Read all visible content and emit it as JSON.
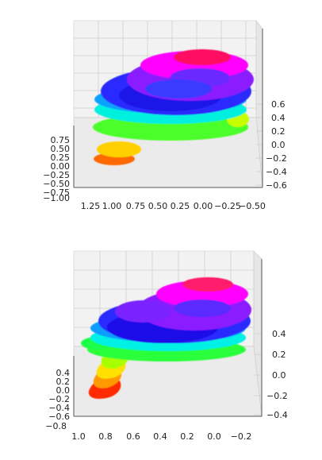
{
  "chart_data": [
    {
      "type": "scatter",
      "title": "",
      "subtitle": "",
      "xlabel": "",
      "ylabel": "",
      "zlabel": "",
      "projection": "3d",
      "grid": true,
      "legend": "none",
      "colormap": "hsv",
      "x_ticks": [
        "1.25",
        "1.00",
        "0.75",
        "0.50",
        "0.25",
        "0.00",
        "−0.25",
        "−0.50"
      ],
      "y_ticks": [
        "0.75",
        "0.50",
        "0.25",
        "0.00",
        "−0.25",
        "−0.50",
        "−0.75",
        "−1.00"
      ],
      "z_ticks": [
        "0.6",
        "0.4",
        "0.2",
        "0.0",
        "−0.2",
        "−0.4",
        "−0.6"
      ],
      "xlim": [
        -0.5,
        1.25
      ],
      "ylim": [
        -1.0,
        0.75
      ],
      "zlim": [
        -0.6,
        0.6
      ],
      "point_cloud": [
        {
          "x": 1.1,
          "y": -0.6,
          "z": -0.45,
          "c": 0.02
        },
        {
          "x": 1.0,
          "y": -0.55,
          "z": -0.4,
          "c": 0.04
        },
        {
          "x": 0.95,
          "y": -0.4,
          "z": -0.32,
          "c": 0.08
        },
        {
          "x": 0.85,
          "y": -0.3,
          "z": -0.22,
          "c": 0.12
        },
        {
          "x": 0.8,
          "y": -0.1,
          "z": -0.1,
          "c": 0.18
        },
        {
          "x": 0.7,
          "y": 0.05,
          "z": 0.0,
          "c": 0.26
        },
        {
          "x": 0.55,
          "y": 0.2,
          "z": 0.1,
          "c": 0.32
        },
        {
          "x": 0.4,
          "y": 0.3,
          "z": 0.18,
          "c": 0.38
        },
        {
          "x": 0.2,
          "y": 0.25,
          "z": 0.15,
          "c": 0.42
        },
        {
          "x": 0.0,
          "y": 0.2,
          "z": 0.1,
          "c": 0.45
        },
        {
          "x": -0.2,
          "y": 0.1,
          "z": 0.05,
          "c": 0.48
        },
        {
          "x": 0.6,
          "y": 0.4,
          "z": 0.3,
          "c": 0.55
        },
        {
          "x": 0.35,
          "y": 0.45,
          "z": 0.35,
          "c": 0.62
        },
        {
          "x": 0.1,
          "y": 0.4,
          "z": 0.38,
          "c": 0.66
        },
        {
          "x": -0.1,
          "y": 0.35,
          "z": 0.4,
          "c": 0.7
        },
        {
          "x": 0.5,
          "y": 0.55,
          "z": 0.45,
          "c": 0.76
        },
        {
          "x": 0.25,
          "y": 0.6,
          "z": 0.5,
          "c": 0.82
        },
        {
          "x": 0.05,
          "y": 0.6,
          "z": 0.55,
          "c": 0.88
        },
        {
          "x": 0.2,
          "y": 0.7,
          "z": 0.6,
          "c": 0.95
        }
      ]
    },
    {
      "type": "scatter",
      "title": "",
      "subtitle": "",
      "xlabel": "",
      "ylabel": "",
      "zlabel": "",
      "projection": "3d",
      "grid": true,
      "legend": "none",
      "colormap": "hsv",
      "x_ticks": [
        "1.0",
        "0.8",
        "0.6",
        "0.4",
        "0.2",
        "0.0",
        "−0.2"
      ],
      "y_ticks": [
        "0.4",
        "0.2",
        "0.0",
        "−0.2",
        "−0.4",
        "−0.6",
        "−0.8"
      ],
      "z_ticks": [
        "0.4",
        "0.2",
        "0.0",
        "−0.2",
        "−0.4"
      ],
      "xlim": [
        -0.2,
        1.0
      ],
      "ylim": [
        -0.8,
        0.4
      ],
      "zlim": [
        -0.4,
        0.4
      ],
      "point_cloud": [
        {
          "x": 0.95,
          "y": -0.7,
          "z": -0.3,
          "c": 0.02
        },
        {
          "x": 0.9,
          "y": -0.55,
          "z": -0.25,
          "c": 0.06
        },
        {
          "x": 0.85,
          "y": -0.4,
          "z": -0.18,
          "c": 0.1
        },
        {
          "x": 0.8,
          "y": -0.25,
          "z": -0.12,
          "c": 0.15
        },
        {
          "x": 0.8,
          "y": -0.1,
          "z": -0.05,
          "c": 0.22
        },
        {
          "x": 0.95,
          "y": 0.0,
          "z": 0.0,
          "c": 0.28
        },
        {
          "x": 0.7,
          "y": 0.05,
          "z": 0.02,
          "c": 0.33
        },
        {
          "x": 0.5,
          "y": 0.1,
          "z": 0.05,
          "c": 0.4
        },
        {
          "x": 0.3,
          "y": 0.1,
          "z": 0.05,
          "c": 0.44
        },
        {
          "x": 0.1,
          "y": 0.05,
          "z": 0.02,
          "c": 0.47
        },
        {
          "x": -0.1,
          "y": 0.0,
          "z": 0.0,
          "c": 0.49
        },
        {
          "x": 0.7,
          "y": 0.2,
          "z": 0.15,
          "c": 0.62
        },
        {
          "x": 0.5,
          "y": 0.2,
          "z": 0.18,
          "c": 0.66
        },
        {
          "x": 0.3,
          "y": 0.25,
          "z": 0.2,
          "c": 0.68
        },
        {
          "x": 0.1,
          "y": 0.2,
          "z": 0.22,
          "c": 0.72
        },
        {
          "x": 0.6,
          "y": 0.3,
          "z": 0.28,
          "c": 0.78
        },
        {
          "x": 0.4,
          "y": 0.35,
          "z": 0.3,
          "c": 0.84
        },
        {
          "x": 0.2,
          "y": 0.35,
          "z": 0.32,
          "c": 0.9
        },
        {
          "x": 0.15,
          "y": 0.4,
          "z": 0.38,
          "c": 0.96
        }
      ]
    }
  ]
}
